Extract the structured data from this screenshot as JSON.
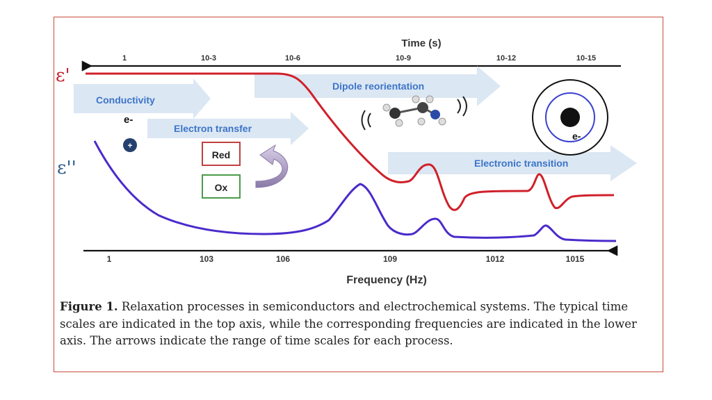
{
  "figure": {
    "top_axis": {
      "title": "Time (s)",
      "ticks": [
        "1",
        "10-3",
        "10-6",
        "10-9",
        "10-12",
        "10-15"
      ]
    },
    "bottom_axis": {
      "title": "Frequency (Hz)",
      "ticks": [
        "1",
        "103",
        "106",
        "109",
        "1012",
        "1015"
      ]
    },
    "labels": {
      "eps_real": "ε'",
      "eps_imag": "ε''",
      "electron": "e-",
      "plus": "+",
      "red": "Red",
      "ox": "Ox",
      "orbit_electron": "e-"
    },
    "arrows": {
      "conductivity": "Conductivity",
      "electron_transfer": "Electron transfer",
      "dipole": "Dipole reorientation",
      "electronic": "Electronic transition"
    },
    "colors": {
      "eps_real_curve": "#d0202a",
      "eps_imag_curve": "#4a2acb",
      "arrow_fill": "#dbe7f3",
      "arrow_text": "#3c74c8",
      "frame": "#c94a3a"
    }
  },
  "caption": {
    "label": "Figure 1.",
    "text": " Relaxation processes in semiconductors and electrochemical systems. The typical time scales are indicated in the top axis, while the corresponding frequencies are indicated in the lower axis. The arrows indicate the range of time scales for each process."
  },
  "chart_data": {
    "type": "line",
    "title": "",
    "xlabel": "Frequency (Hz)",
    "x2label": "Time (s)",
    "x_scale": "log",
    "x_ticks": [
      "1",
      "10^3",
      "10^6",
      "10^9",
      "10^12",
      "10^15"
    ],
    "x2_ticks": [
      "1",
      "10^-3",
      "10^-6",
      "10^-9",
      "10^-12",
      "10^-15"
    ],
    "series": [
      {
        "name": "ε'",
        "shape": "high plateau to ~10^6 Hz, step down near 10^8 Hz, resonance near 10^10 Hz, resonance near 10^14 Hz, low plateau"
      },
      {
        "name": "ε''",
        "shape": "decreasing from low frequency, loss peak near 10^8 Hz, peak near 10^10 Hz, peak near 10^14 Hz"
      }
    ]
  }
}
